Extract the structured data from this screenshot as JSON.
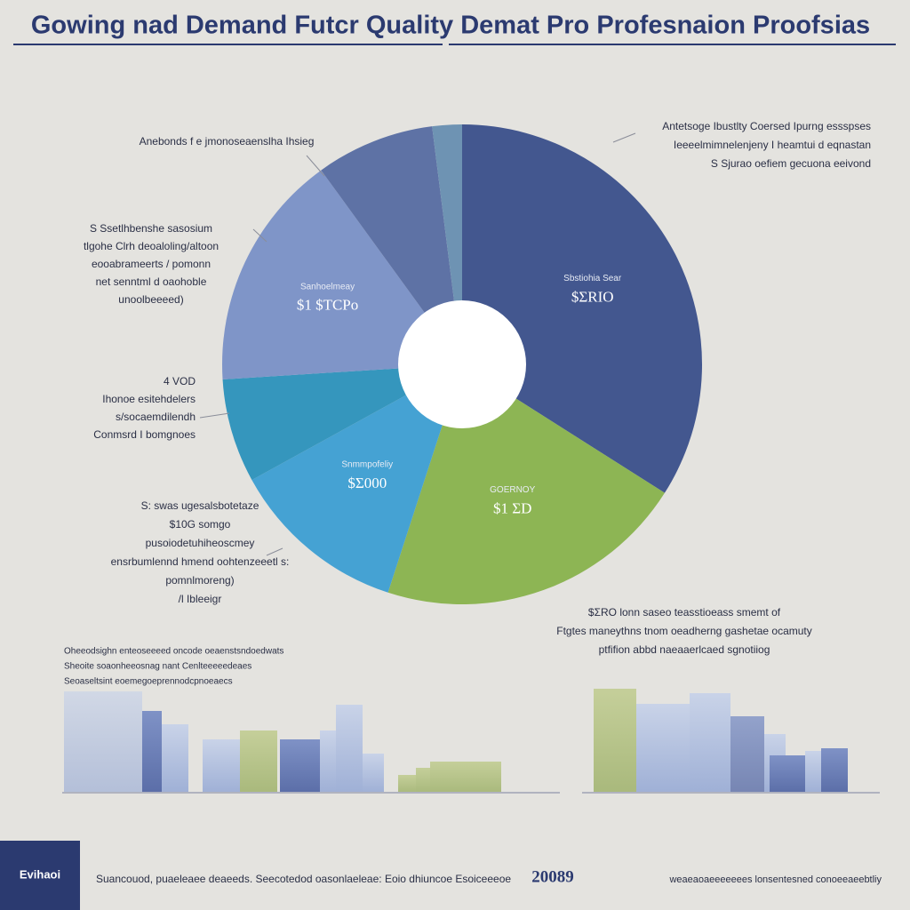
{
  "chart_data": {
    "type": "pie",
    "title": "Gowing nad Demand Futcr Quality Demat Pro Profesnaion Proofsias",
    "categories": [
      "Sbstiohia Sear",
      "GOERNOY",
      "Snmmpofeliy",
      null,
      "Sanhoelmeay",
      null,
      null
    ],
    "values": [
      34,
      21,
      12,
      7,
      16,
      8,
      2
    ],
    "colors": [
      "#43578f",
      "#8db554",
      "#45a2d3",
      "#3596bd",
      "#7f95c8",
      "#5e72a5",
      "#6e93b3"
    ],
    "slice_labels": [
      "$ΣRIO",
      "$1 ΣD",
      "$Σ000",
      null,
      "$1 $TCPo",
      null,
      null
    ],
    "donut": true,
    "callouts": [
      [
        "Anebonds f e jmonoseaenslha Ihsieg"
      ],
      [
        "S Ssetlhbenshe sasosium",
        "tlgohe Clrh deoaloling/altoon",
        "eooabrameerts / pomonn",
        "net senntml d oaohoble",
        "unoolbeeeed)"
      ],
      [
        "4 VOD",
        "Ihonoe esitehdelers",
        "s/socaemdilendh",
        "Conmsrd I bomgnoes"
      ],
      [
        "S: swas ugesalsbotetaze",
        "$10G somgo",
        "pusoiodetuhiheoscmey",
        "ensrbumlennd hmend oohtenzeeetl s:",
        "pomnlmoreng)",
        "/l Ibleeigr"
      ],
      [
        "Antetsoge Ibustlty Coersed Ipurng essspses",
        "Ieeeelmimnelenjeny I heamtui d eqnastan",
        "S Sjurao oefiem gecuona eeivond"
      ],
      [
        "$ΣRO lonn saseo teasstioeass smemt of",
        "Ftgtes maneythns tnom oeadherng gashetae ocamuty",
        "ptfifion abbd naeaaerlcaed sgnotiiog"
      ],
      [
        "Oheeodsighn enteoseeeed oncode oeaenstsndoedwats",
        "Sheoite soaonheeosnag nant Cenlteeeeedeaes",
        "Seoaseltsint eoemegoeprennodcpnoeaecs"
      ]
    ],
    "footer": {
      "logo": "Evihaoi",
      "text": "Suancouod, puaeleaee deaeeds. Seecotedod oasonlaeleae: Eoio dhiuncoe Esoiceeeoe",
      "year": "20089",
      "right": "weaeaoaeeeeeees lonsentesned conoeeaeebtliy"
    }
  }
}
